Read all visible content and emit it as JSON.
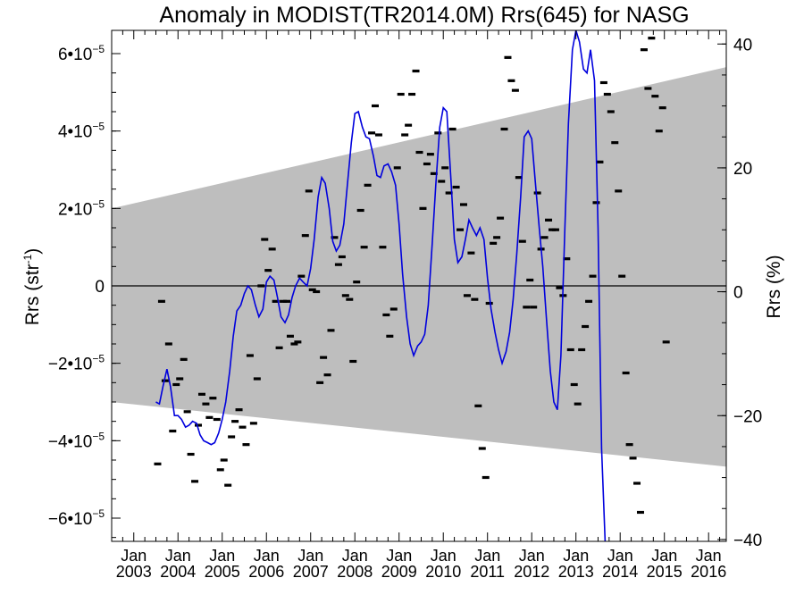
{
  "chart_data": {
    "type": "line",
    "title": "Anomaly in MODIST(TR2014.0M) Rrs(645) for NASG",
    "ylabel_left": "Rrs (str",
    "ylabel_left_sup": "-1",
    "ylabel_left_close": ")",
    "ylabel_right": "Rrs (%)",
    "xlim": [
      2002.5,
      2016.4
    ],
    "ylim_left": [
      -6.6e-05,
      6.6e-05
    ],
    "ylim_right": [
      -40.3,
      42.2
    ],
    "left_ticks": [
      {
        "v": 6e-05,
        "label": "6•10"
      },
      {
        "v": 4e-05,
        "label": "4•10"
      },
      {
        "v": 2e-05,
        "label": "2•10"
      },
      {
        "v": 0,
        "label": "0"
      },
      {
        "v": -2e-05,
        "label": "−2•10"
      },
      {
        "v": -4e-05,
        "label": "−4•10"
      },
      {
        "v": -6e-05,
        "label": "−6•10"
      }
    ],
    "left_tick_exp": "−5",
    "right_ticks": [
      {
        "v": 40,
        "label": "40"
      },
      {
        "v": 20,
        "label": "20"
      },
      {
        "v": 0,
        "label": "0"
      },
      {
        "v": -20,
        "label": "−20"
      },
      {
        "v": -40,
        "label": "−40"
      }
    ],
    "x_ticks": [
      {
        "v": 2003.0,
        "month": "Jan",
        "year": "2003"
      },
      {
        "v": 2004.0,
        "month": "Jan",
        "year": "2004"
      },
      {
        "v": 2005.0,
        "month": "Jan",
        "year": "2005"
      },
      {
        "v": 2006.0,
        "month": "Jan",
        "year": "2006"
      },
      {
        "v": 2007.0,
        "month": "Jan",
        "year": "2007"
      },
      {
        "v": 2008.0,
        "month": "Jan",
        "year": "2008"
      },
      {
        "v": 2009.0,
        "month": "Jan",
        "year": "2009"
      },
      {
        "v": 2010.0,
        "month": "Jan",
        "year": "2010"
      },
      {
        "v": 2011.0,
        "month": "Jan",
        "year": "2011"
      },
      {
        "v": 2012.0,
        "month": "Jan",
        "year": "2012"
      },
      {
        "v": 2013.0,
        "month": "Jan",
        "year": "2013"
      },
      {
        "v": 2014.0,
        "month": "Jan",
        "year": "2014"
      },
      {
        "v": 2015.0,
        "month": "Jan",
        "year": "2015"
      },
      {
        "v": 2016.0,
        "month": "Jan",
        "year": "2016"
      }
    ],
    "band": {
      "upper": [
        [
          2002.5,
          2e-05
        ],
        [
          2016.4,
          5.65e-05
        ]
      ],
      "lower": [
        [
          2002.5,
          -3e-05
        ],
        [
          2016.4,
          -4.67e-05
        ]
      ],
      "color": "#bebebe"
    },
    "zero_line": true,
    "line_color": "#0000dd",
    "marker_color": "#000000",
    "monthly_anomaly": [
      [
        2002.54,
        -4.6e-05
      ],
      [
        2002.63,
        -4e-06
      ],
      [
        2002.71,
        -2.45e-05
      ],
      [
        2002.79,
        -1.5e-05
      ],
      [
        2002.88,
        -3.75e-05
      ],
      [
        2002.96,
        -2.55e-05
      ],
      [
        2003.04,
        -2.4e-05
      ],
      [
        2003.13,
        -1.9e-05
      ],
      [
        2003.21,
        -3.25e-05
      ],
      [
        2003.29,
        -4.35e-05
      ],
      [
        2003.38,
        -5.05e-05
      ],
      [
        2003.46,
        -3.6e-05
      ],
      [
        2003.54,
        -2.8e-05
      ],
      [
        2003.63,
        -3.05e-05
      ],
      [
        2003.71,
        -3.4e-05
      ],
      [
        2003.79,
        -2.9e-05
      ],
      [
        2003.88,
        -3.45e-05
      ],
      [
        2003.96,
        -4.75e-05
      ],
      [
        2004.04,
        -4.5e-05
      ],
      [
        2004.13,
        -5.15e-05
      ],
      [
        2004.21,
        -3.9e-05
      ],
      [
        2004.29,
        -3.5e-05
      ],
      [
        2004.38,
        -3.2e-05
      ],
      [
        2004.46,
        -3.65e-05
      ],
      [
        2004.54,
        -4.1e-05
      ],
      [
        2004.63,
        -1.8e-05
      ],
      [
        2004.71,
        -3.55e-05
      ],
      [
        2004.79,
        -2.4e-05
      ],
      [
        2004.88,
        0.0
      ],
      [
        2004.96,
        1.2e-05
      ],
      [
        2005.04,
        4e-06
      ],
      [
        2005.13,
        9.5e-06
      ],
      [
        2005.21,
        -4e-06
      ],
      [
        2005.29,
        -1.6e-05
      ],
      [
        2005.38,
        -4e-06
      ],
      [
        2005.46,
        -4e-06
      ],
      [
        2005.54,
        -1.3e-05
      ],
      [
        2005.63,
        -1.5e-05
      ],
      [
        2005.71,
        -1.45e-05
      ],
      [
        2005.79,
        2.5e-06
      ],
      [
        2005.88,
        1.3e-05
      ],
      [
        2005.96,
        2.45e-05
      ],
      [
        2006.04,
        -1e-06
      ],
      [
        2006.13,
        -1.5e-06
      ],
      [
        2006.21,
        -2.5e-05
      ],
      [
        2006.29,
        -1.85e-05
      ],
      [
        2006.38,
        -2.3e-05
      ],
      [
        2006.46,
        -1.15e-05
      ],
      [
        2006.54,
        1.25e-05
      ],
      [
        2006.63,
        5.5e-06
      ],
      [
        2006.71,
        7.5e-06
      ],
      [
        2006.79,
        -2.5e-06
      ],
      [
        2006.88,
        -3.5e-06
      ],
      [
        2006.96,
        -1.95e-05
      ],
      [
        2007.04,
        1e-06
      ],
      [
        2007.13,
        1.95e-05
      ],
      [
        2007.21,
        1e-05
      ],
      [
        2007.29,
        2.6e-05
      ],
      [
        2007.38,
        3.95e-05
      ],
      [
        2007.46,
        4.65e-05
      ],
      [
        2007.54,
        3.9e-05
      ],
      [
        2007.63,
        1e-05
      ],
      [
        2007.71,
        -7.5e-06
      ],
      [
        2007.79,
        -1.3e-05
      ],
      [
        2007.88,
        -6e-06
      ],
      [
        2007.96,
        3.05e-05
      ],
      [
        2008.04,
        4.95e-05
      ],
      [
        2008.13,
        3.9e-05
      ],
      [
        2008.21,
        4.15e-05
      ],
      [
        2008.29,
        4.95e-05
      ],
      [
        2008.38,
        5.55e-05
      ],
      [
        2008.46,
        3.45e-05
      ],
      [
        2008.54,
        2e-05
      ],
      [
        2008.63,
        3.15e-05
      ],
      [
        2008.71,
        3.4e-05
      ],
      [
        2008.79,
        2.9e-05
      ],
      [
        2008.88,
        3.95e-05
      ],
      [
        2008.96,
        2.7e-05
      ],
      [
        2009.04,
        3.05e-05
      ],
      [
        2009.13,
        2.4e-05
      ],
      [
        2009.21,
        4.05e-05
      ],
      [
        2009.29,
        2.55e-05
      ],
      [
        2009.38,
        1.45e-05
      ],
      [
        2009.46,
        2.1e-05
      ],
      [
        2009.54,
        -2.5e-06
      ],
      [
        2009.63,
        8.5e-06
      ],
      [
        2009.71,
        -3.5e-06
      ],
      [
        2009.79,
        -3.1e-05
      ],
      [
        2009.88,
        -4.2e-05
      ],
      [
        2009.96,
        -4.95e-05
      ],
      [
        2010.04,
        -4.5e-06
      ],
      [
        2010.13,
        1.1e-05
      ],
      [
        2010.21,
        1.25e-05
      ],
      [
        2010.29,
        1.75e-05
      ],
      [
        2010.38,
        4.05e-05
      ],
      [
        2010.46,
        5.9e-05
      ],
      [
        2010.54,
        5.3e-05
      ],
      [
        2010.63,
        5.05e-05
      ],
      [
        2010.71,
        2.8e-05
      ],
      [
        2010.79,
        1.15e-05
      ],
      [
        2010.88,
        -5.5e-06
      ],
      [
        2010.96,
        1.5e-06
      ],
      [
        2011.04,
        -5.5e-06
      ],
      [
        2011.13,
        2.4e-05
      ],
      [
        2011.21,
        9.5e-06
      ],
      [
        2011.29,
        1.25e-05
      ],
      [
        2011.38,
        1.7e-05
      ],
      [
        2011.46,
        1.45e-05
      ],
      [
        2011.54,
        1.45e-05
      ],
      [
        2011.63,
        -5e-07
      ],
      [
        2011.71,
        -2.5e-06
      ],
      [
        2011.79,
        7e-06
      ],
      [
        2011.88,
        -1.65e-05
      ],
      [
        2011.96,
        -2.55e-05
      ],
      [
        2012.04,
        -3.05e-05
      ],
      [
        2012.13,
        -1.65e-05
      ],
      [
        2012.21,
        -1.05e-05
      ],
      [
        2012.29,
        -4e-06
      ],
      [
        2012.38,
        2.5e-06
      ],
      [
        2012.46,
        2.15e-05
      ],
      [
        2012.54,
        3.2e-05
      ],
      [
        2012.63,
        5.25e-05
      ],
      [
        2012.71,
        4.95e-05
      ],
      [
        2012.79,
        4.5e-05
      ],
      [
        2012.88,
        3.7e-05
      ],
      [
        2012.96,
        2.45e-05
      ],
      [
        2013.04,
        2.5e-06
      ],
      [
        2013.13,
        -2.25e-05
      ],
      [
        2013.21,
        -4.1e-05
      ],
      [
        2013.29,
        -4.45e-05
      ],
      [
        2013.38,
        -5.1e-05
      ],
      [
        2013.46,
        -5.85e-05
      ],
      [
        2013.54,
        6.1e-05
      ],
      [
        2013.63,
        5.1e-05
      ],
      [
        2013.71,
        6.4e-05
      ],
      [
        2013.79,
        4.9e-05
      ],
      [
        2013.88,
        4e-05
      ],
      [
        2013.96,
        4.6e-05
      ],
      [
        2014.04,
        -1.45e-05
      ]
    ],
    "monthly_anomaly_x_shift": 1.0,
    "smoothed": [
      [
        2002.5,
        -3e-05
      ],
      [
        2002.58,
        -3.05e-05
      ],
      [
        2002.66,
        -2.6e-05
      ],
      [
        2002.75,
        -2.15e-05
      ],
      [
        2002.83,
        -2.6e-05
      ],
      [
        2002.92,
        -3.35e-05
      ],
      [
        2003.0,
        -3.35e-05
      ],
      [
        2003.08,
        -3.45e-05
      ],
      [
        2003.17,
        -3.65e-05
      ],
      [
        2003.25,
        -3.6e-05
      ],
      [
        2003.33,
        -3.5e-05
      ],
      [
        2003.42,
        -3.55e-05
      ],
      [
        2003.5,
        -3.85e-05
      ],
      [
        2003.58,
        -4e-05
      ],
      [
        2003.67,
        -4.05e-05
      ],
      [
        2003.75,
        -4.1e-05
      ],
      [
        2003.83,
        -4.05e-05
      ],
      [
        2003.92,
        -3.8e-05
      ],
      [
        2004.0,
        -3.45e-05
      ],
      [
        2004.08,
        -3e-05
      ],
      [
        2004.17,
        -2.2e-05
      ],
      [
        2004.25,
        -1.3e-05
      ],
      [
        2004.33,
        -6.5e-06
      ],
      [
        2004.42,
        -5e-06
      ],
      [
        2004.5,
        -2e-06
      ],
      [
        2004.58,
        0.0
      ],
      [
        2004.66,
        -1e-06
      ],
      [
        2004.75,
        -5e-06
      ],
      [
        2004.83,
        -8e-06
      ],
      [
        2004.92,
        -6e-06
      ],
      [
        2005.0,
        1e-06
      ],
      [
        2005.08,
        2.5e-06
      ],
      [
        2005.17,
        1.5e-06
      ],
      [
        2005.25,
        -3e-06
      ],
      [
        2005.33,
        -8e-06
      ],
      [
        2005.42,
        -9.5e-06
      ],
      [
        2005.5,
        -7.5e-06
      ],
      [
        2005.58,
        -3e-06
      ],
      [
        2005.66,
        0.0
      ],
      [
        2005.75,
        2e-06
      ],
      [
        2005.83,
        1e-06
      ],
      [
        2005.92,
        0.0
      ],
      [
        2006.0,
        4.5e-06
      ],
      [
        2006.08,
        1.2e-05
      ],
      [
        2006.17,
        2.3e-05
      ],
      [
        2006.25,
        2.8e-05
      ],
      [
        2006.33,
        2.65e-05
      ],
      [
        2006.42,
        2e-05
      ],
      [
        2006.5,
        1.15e-05
      ],
      [
        2006.58,
        9e-06
      ],
      [
        2006.66,
        1.05e-05
      ],
      [
        2006.75,
        1.6e-05
      ],
      [
        2006.83,
        2.6e-05
      ],
      [
        2006.92,
        3.7e-05
      ],
      [
        2007.0,
        4.45e-05
      ],
      [
        2007.08,
        4.5e-05
      ],
      [
        2007.17,
        4.1e-05
      ],
      [
        2007.25,
        3.85e-05
      ],
      [
        2007.33,
        3.8e-05
      ],
      [
        2007.42,
        3.35e-05
      ],
      [
        2007.5,
        2.85e-05
      ],
      [
        2007.58,
        2.8e-05
      ],
      [
        2007.66,
        3.1e-05
      ],
      [
        2007.75,
        3.15e-05
      ],
      [
        2007.83,
        2.95e-05
      ],
      [
        2007.92,
        2.6e-05
      ],
      [
        2008.0,
        1.6e-05
      ],
      [
        2008.08,
        3e-06
      ],
      [
        2008.17,
        -8e-06
      ],
      [
        2008.25,
        -1.5e-05
      ],
      [
        2008.33,
        -1.8e-05
      ],
      [
        2008.42,
        -1.55e-05
      ],
      [
        2008.5,
        -1.45e-05
      ],
      [
        2008.58,
        -1.25e-05
      ],
      [
        2008.66,
        -5e-06
      ],
      [
        2008.75,
        1.1e-05
      ],
      [
        2008.83,
        2.6e-05
      ],
      [
        2008.92,
        4.1e-05
      ],
      [
        2009.0,
        4.6e-05
      ],
      [
        2009.08,
        4.5e-05
      ],
      [
        2009.17,
        2.8e-05
      ],
      [
        2009.25,
        1.2e-05
      ],
      [
        2009.33,
        6e-06
      ],
      [
        2009.42,
        7.5e-06
      ],
      [
        2009.5,
        1.2e-05
      ],
      [
        2009.58,
        1.7e-05
      ],
      [
        2009.66,
        1.5e-05
      ],
      [
        2009.75,
        1.3e-05
      ],
      [
        2009.83,
        1.5e-05
      ],
      [
        2009.92,
        1.2e-05
      ],
      [
        2010.0,
        2e-06
      ],
      [
        2010.08,
        -6e-06
      ],
      [
        2010.17,
        -1.2e-05
      ],
      [
        2010.25,
        -1.65e-05
      ],
      [
        2010.33,
        -2e-05
      ],
      [
        2010.42,
        -1.7e-05
      ],
      [
        2010.5,
        -1.2e-05
      ],
      [
        2010.58,
        -3.5e-06
      ],
      [
        2010.66,
        8e-06
      ],
      [
        2010.75,
        2.3e-05
      ],
      [
        2010.83,
        3.85e-05
      ],
      [
        2010.92,
        4e-05
      ],
      [
        2011.0,
        3.8e-05
      ],
      [
        2011.08,
        2.7e-05
      ],
      [
        2011.17,
        1.5e-05
      ],
      [
        2011.25,
        5e-06
      ],
      [
        2011.33,
        -8e-06
      ],
      [
        2011.42,
        -2.2e-05
      ],
      [
        2011.5,
        -3e-05
      ],
      [
        2011.58,
        -3.2e-05
      ],
      [
        2011.66,
        -1.8e-05
      ],
      [
        2011.75,
        1.5e-05
      ],
      [
        2011.83,
        4.2e-05
      ],
      [
        2011.92,
        6.1e-05
      ],
      [
        2012.0,
        6.6e-05
      ],
      [
        2012.08,
        6.3e-05
      ],
      [
        2012.17,
        5.6e-05
      ],
      [
        2012.25,
        5.5e-05
      ],
      [
        2012.33,
        6.1e-05
      ],
      [
        2012.42,
        5.3e-05
      ],
      [
        2012.5,
        1.5e-05
      ],
      [
        2012.58,
        -4.2e-05
      ],
      [
        2012.66,
        -6.6e-05
      ]
    ],
    "smoothed_x_shift": 1.0
  }
}
